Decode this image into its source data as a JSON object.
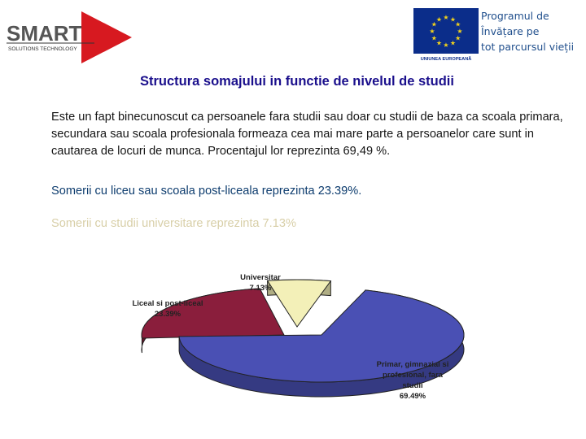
{
  "header": {
    "smart_logo": {
      "wordmark": "SMART",
      "tagline": "SOLUTIONS TECHNOLOGY"
    },
    "eu_logo": {
      "caption": "UNIUNEA EUROPEANĂ"
    },
    "program_lines": [
      "Programul de",
      "Învățare pe",
      "tot parcursul vieții"
    ]
  },
  "slide": {
    "title": "Structura somajului in functie de nivelul de studii",
    "paragraph1": "Este un fapt binecunoscut ca persoanele fara studii sau doar cu studii de baza ca scoala primara, secundara sau scoala profesionala formeaza cea mai mare parte a persoanelor care sunt in cautarea de locuri de munca. Procentajul lor reprezinta 69,49 %.",
    "paragraph2": "Somerii cu liceu sau scoala post-liceala reprezinta 23.39%.",
    "paragraph3": "Somerii cu studii universitare reprezinta 7.13%"
  },
  "colors": {
    "title": "#1a0f8c",
    "smart_red": "#d71920",
    "eu_blue": "#0b2d8a",
    "eu_star": "#f2d21b"
  },
  "chart_data": {
    "type": "pie",
    "style": "3d-exploded",
    "slices": [
      {
        "label_lines": [
          "Primar, gimnazial si",
          "profesional, fara",
          "studii"
        ],
        "value_label": "69.49%",
        "value": 69.49,
        "color": "#4a50b4"
      },
      {
        "label_lines": [
          "Liceal si post-liceal"
        ],
        "value_label": "23.39%",
        "value": 23.39,
        "color": "#8a1e3c"
      },
      {
        "label_lines": [
          "Universitar"
        ],
        "value_label": "7.13%",
        "value": 7.13,
        "color": "#f3f0b8"
      }
    ]
  }
}
